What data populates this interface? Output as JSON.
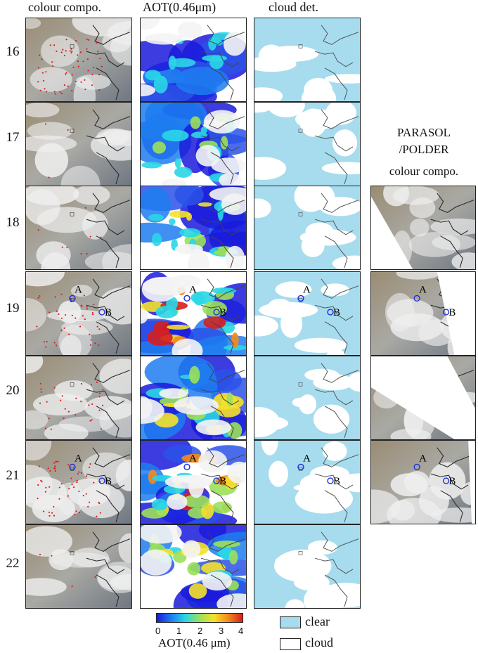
{
  "columns": [
    "colour compo.",
    "AOT(0.46μm)",
    "cloud det."
  ],
  "days": [
    "16",
    "17",
    "18",
    "19",
    "20",
    "21",
    "22"
  ],
  "parasol_title": [
    "PARASOL",
    "/POLDER",
    "colour compo."
  ],
  "site_labels": {
    "a": "A",
    "b": "B"
  },
  "sites_shown_days": [
    "19",
    "21"
  ],
  "parasol_days": [
    "18",
    "19",
    "20",
    "21"
  ],
  "colorbar": {
    "ticks": [
      "0",
      "1",
      "2",
      "3",
      "4"
    ],
    "label": "AOT(0.46 μm)",
    "min": 0,
    "max": 4,
    "colors": [
      "#1a1adc",
      "#1d7df0",
      "#2ad6e6",
      "#9be05a",
      "#f5e12a",
      "#f58a1c",
      "#d61e1e"
    ]
  },
  "legend": [
    {
      "label": "clear",
      "color": "#a6dcee"
    },
    {
      "label": "cloud",
      "color": "#ffffff"
    }
  ]
}
